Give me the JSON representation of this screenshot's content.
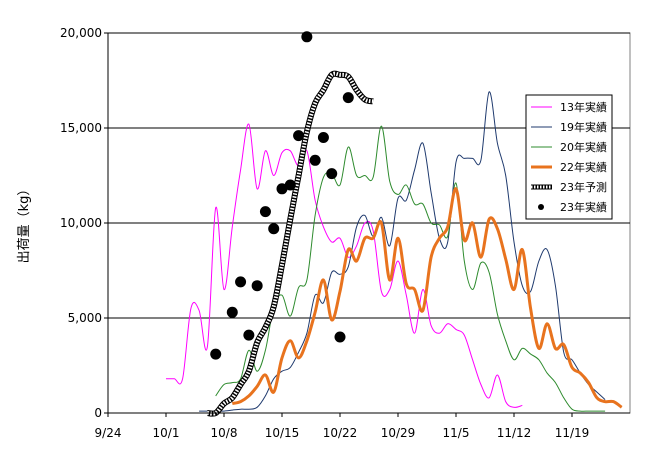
{
  "chart_data": {
    "type": "line",
    "ylabel": "出荷量（kg）",
    "ylim": [
      0,
      20000
    ],
    "yticks": [
      0,
      5000,
      10000,
      15000,
      20000
    ],
    "ytick_labels": [
      "0",
      "5,000",
      "10,000",
      "15,000",
      "20,000"
    ],
    "x_domain": [
      0,
      63
    ],
    "x_unit": "days from 9/24",
    "xticks": [
      0,
      7,
      14,
      21,
      28,
      35,
      42,
      49,
      56
    ],
    "xtick_labels": [
      "9/24",
      "10/1",
      "10/8",
      "10/15",
      "10/22",
      "10/29",
      "11/5",
      "11/12",
      "11/19"
    ],
    "grid": "horizontal",
    "legend_position": "right",
    "series": [
      {
        "name": "13年実績",
        "color": "#ff00ff",
        "width": 1,
        "x": [
          7,
          8,
          9,
          10,
          11,
          12,
          13,
          14,
          15,
          16,
          17,
          18,
          19,
          20,
          21,
          22,
          23,
          24,
          25,
          26,
          27,
          28,
          29,
          30,
          31,
          32,
          33,
          34,
          35,
          36,
          37,
          38,
          39,
          40,
          41,
          42,
          43,
          44,
          45,
          46,
          47,
          48,
          49,
          50
        ],
        "values": [
          1800,
          1800,
          1800,
          5500,
          5400,
          3500,
          10800,
          6500,
          9800,
          12800,
          15200,
          11800,
          13800,
          12500,
          13700,
          13800,
          13000,
          13800,
          11200,
          9800,
          9000,
          9200,
          8200,
          8800,
          10000,
          9600,
          6400,
          6500,
          8000,
          6200,
          4200,
          6500,
          4600,
          4200,
          4700,
          4400,
          4100,
          2800,
          1500,
          800,
          2000,
          600,
          300,
          400
        ]
      },
      {
        "name": "19年実績",
        "color": "#1f3a6e",
        "width": 1,
        "x": [
          11,
          12,
          13,
          14,
          15,
          16,
          17,
          18,
          19,
          20,
          21,
          22,
          23,
          24,
          25,
          26,
          27,
          28,
          29,
          30,
          31,
          32,
          33,
          34,
          35,
          36,
          37,
          38,
          39,
          40,
          41,
          42,
          43,
          44,
          45,
          46,
          47,
          48,
          49,
          50,
          51,
          52,
          53,
          54,
          55,
          56,
          57,
          58,
          59,
          60
        ],
        "values": [
          100,
          100,
          100,
          100,
          150,
          200,
          200,
          300,
          900,
          1800,
          2200,
          2400,
          3200,
          4200,
          6200,
          5800,
          7400,
          7300,
          7700,
          9800,
          10400,
          9300,
          10300,
          8800,
          11300,
          11200,
          12800,
          14200,
          11600,
          9200,
          9000,
          13200,
          13400,
          13400,
          13300,
          16900,
          14200,
          12500,
          9000,
          6700,
          6400,
          8000,
          8600,
          6700,
          3200,
          2800,
          2100,
          1500,
          1100,
          700
        ]
      },
      {
        "name": "20年実績",
        "color": "#2e8b2e",
        "width": 1,
        "x": [
          13,
          14,
          15,
          16,
          17,
          18,
          19,
          20,
          21,
          22,
          23,
          24,
          25,
          26,
          27,
          28,
          29,
          30,
          31,
          32,
          33,
          34,
          35,
          36,
          37,
          38,
          39,
          40,
          41,
          42,
          43,
          44,
          45,
          46,
          47,
          48,
          49,
          50,
          51,
          52,
          53,
          54,
          55,
          56,
          57,
          58,
          59,
          60
        ],
        "values": [
          900,
          1500,
          1600,
          1800,
          3300,
          2200,
          3300,
          5600,
          6200,
          5100,
          6600,
          7000,
          10400,
          12400,
          12600,
          12000,
          14000,
          12500,
          12500,
          12400,
          15100,
          12200,
          11500,
          12000,
          11000,
          11000,
          10000,
          9900,
          9300,
          12100,
          8000,
          6500,
          7900,
          7400,
          5200,
          3800,
          2800,
          3400,
          3100,
          2800,
          2100,
          1600,
          800,
          200,
          100,
          100,
          100,
          100
        ]
      },
      {
        "name": "22年実績",
        "color": "#e8731e",
        "width": 3,
        "x": [
          15,
          16,
          17,
          18,
          19,
          20,
          21,
          22,
          23,
          24,
          25,
          26,
          27,
          28,
          29,
          30,
          31,
          32,
          33,
          34,
          35,
          36,
          37,
          38,
          39,
          40,
          41,
          42,
          43,
          44,
          45,
          46,
          47,
          48,
          49,
          50,
          51,
          52,
          53,
          54,
          55,
          56,
          57,
          58,
          59,
          60,
          61,
          62
        ],
        "values": [
          500,
          600,
          900,
          1400,
          2000,
          1100,
          2900,
          3800,
          2900,
          3800,
          5300,
          7000,
          4900,
          6400,
          8600,
          8000,
          9200,
          9200,
          10000,
          7000,
          9200,
          6800,
          6500,
          5400,
          8200,
          9200,
          9800,
          11800,
          9100,
          10000,
          8200,
          10200,
          9700,
          8100,
          6500,
          8600,
          5500,
          3400,
          4700,
          3400,
          3600,
          2400,
          2100,
          1600,
          800,
          600,
          600,
          300
        ]
      },
      {
        "name": "23年予測",
        "color": "#444444",
        "width": 5,
        "style": "hatched",
        "x": [
          12,
          13,
          14,
          15,
          16,
          17,
          18,
          19,
          20,
          21,
          22,
          23,
          24,
          25,
          26,
          27,
          28,
          29,
          30,
          31,
          32
        ],
        "values": [
          0,
          0,
          500,
          800,
          1500,
          2200,
          3700,
          4500,
          5600,
          7800,
          10200,
          12500,
          14800,
          16300,
          17000,
          17800,
          17800,
          17700,
          17000,
          16500,
          16400
        ]
      },
      {
        "name": "23年実績",
        "color": "#000000",
        "type": "scatter",
        "x": [
          13,
          15,
          16,
          17,
          18,
          19,
          20,
          21,
          22,
          23,
          24,
          25,
          26,
          27,
          28,
          29,
          30,
          31,
          32,
          33
        ],
        "values": [
          3100,
          5300,
          6900,
          4100,
          6700,
          10600,
          9700,
          11800,
          12000,
          14600,
          19800,
          13300,
          14500,
          12600,
          4000,
          16600,
          null,
          null,
          null,
          null
        ]
      }
    ]
  }
}
